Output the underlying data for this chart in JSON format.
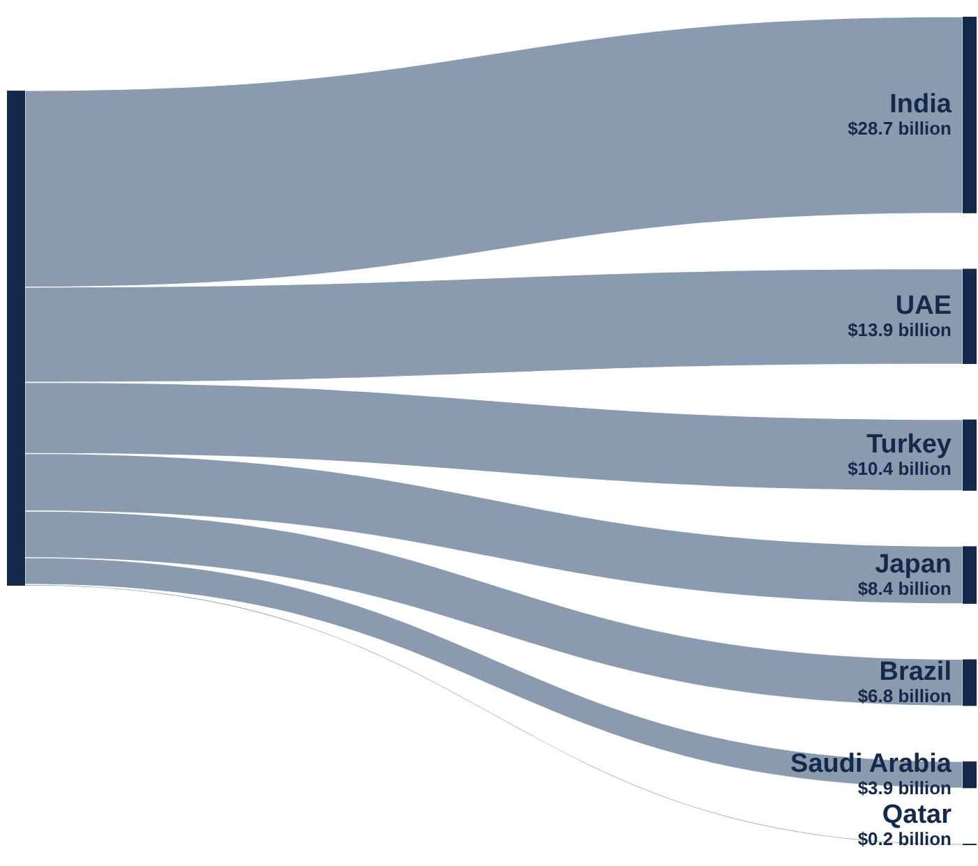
{
  "chart_data": {
    "type": "other",
    "categories": [
      "India",
      "UAE",
      "Turkey",
      "Japan",
      "Brazil",
      "Saudi Arabia",
      "Qatar"
    ],
    "values": [
      28.7,
      13.9,
      10.4,
      8.4,
      6.8,
      3.9,
      0.2
    ],
    "value_labels": [
      "$28.7 billion",
      "$13.9 billion",
      "$10.4 billion",
      "$8.4 billion",
      "$6.8 billion",
      "$3.9 billion",
      "$0.2 billion"
    ],
    "color": "#15294a",
    "colors": [
      "#8a9bb0",
      "#8a9bb0",
      "#8a9bb0",
      "#8a9bb0",
      "#8a9bb0",
      "#8a9bb0",
      "#8a9bb0"
    ]
  }
}
